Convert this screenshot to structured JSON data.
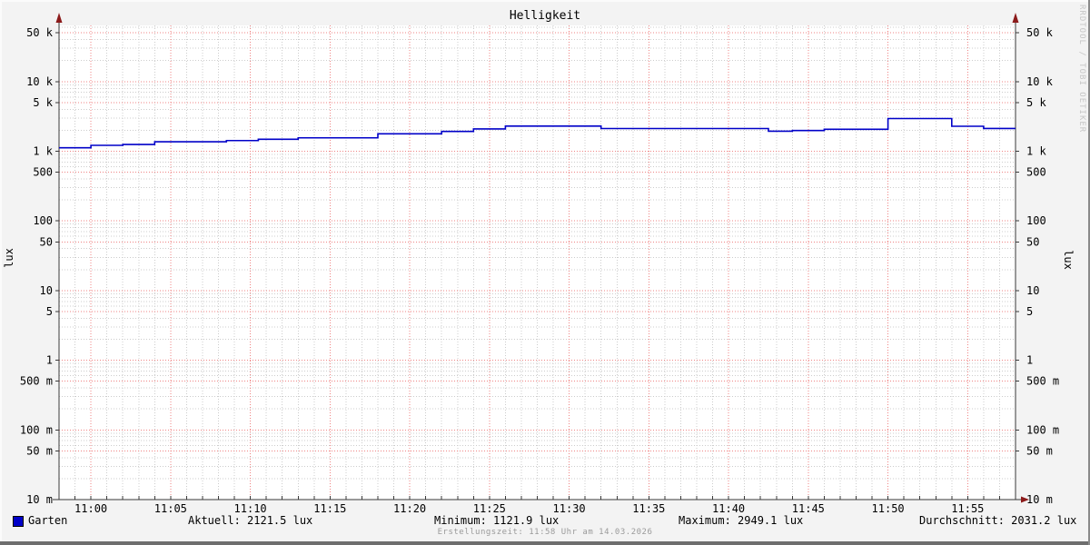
{
  "title": "Helligkeit",
  "watermark": "RRDTOOL / TOBI OETIKER",
  "footer_text": "Erstellungszeit: 11:58 Uhr am 14.03.2026",
  "colors": {
    "background": "#f3f3f3",
    "plot_background": "#ffffff",
    "major_grid": "#ef8383",
    "minor_grid": "#cccccc",
    "axis": "#3a3a3a",
    "arrow": "#8b1a1a",
    "line": "#0000C8",
    "legend_swatch": "#0000C8"
  },
  "stats_row": [
    {
      "id": "aktuell",
      "text": "Aktuell: 2121.5 lux"
    },
    {
      "id": "minimum",
      "text": "Minimum: 1121.9 lux"
    },
    {
      "id": "maximum",
      "text": "Maximum: 2949.1 lux"
    },
    {
      "id": "durchschnitt",
      "text": "Durchschnitt: 2031.2 lux"
    }
  ],
  "chart_data": {
    "type": "line",
    "style": "step-after",
    "title": "Helligkeit",
    "xlabel": "",
    "ylabel": "lux",
    "y_scale": "log",
    "ylim": [
      0.01,
      64000
    ],
    "x_start_time": "10:58",
    "x_end_time": "11:58",
    "x_span_minutes": 60,
    "grid": true,
    "x_ticks": [
      {
        "m": 2,
        "label": "11:00"
      },
      {
        "m": 7,
        "label": "11:05"
      },
      {
        "m": 12,
        "label": "11:10"
      },
      {
        "m": 17,
        "label": "11:15"
      },
      {
        "m": 22,
        "label": "11:20"
      },
      {
        "m": 27,
        "label": "11:25"
      },
      {
        "m": 32,
        "label": "11:30"
      },
      {
        "m": 37,
        "label": "11:35"
      },
      {
        "m": 42,
        "label": "11:40"
      },
      {
        "m": 47,
        "label": "11:45"
      },
      {
        "m": 52,
        "label": "11:50"
      },
      {
        "m": 57,
        "label": "11:55"
      }
    ],
    "y_ticks": [
      {
        "v": 50000,
        "label": "50 k"
      },
      {
        "v": 10000,
        "label": "10 k"
      },
      {
        "v": 5000,
        "label": "5 k"
      },
      {
        "v": 1000,
        "label": "1 k"
      },
      {
        "v": 500,
        "label": "500"
      },
      {
        "v": 100,
        "label": "100"
      },
      {
        "v": 50,
        "label": "50"
      },
      {
        "v": 10,
        "label": "10"
      },
      {
        "v": 5,
        "label": "5"
      },
      {
        "v": 1,
        "label": "1"
      },
      {
        "v": 0.5,
        "label": "500 m"
      },
      {
        "v": 0.1,
        "label": "100 m"
      },
      {
        "v": 0.05,
        "label": "50 m"
      },
      {
        "v": 0.01,
        "label": "10 m"
      }
    ],
    "series": [
      {
        "name": "Garten",
        "color": "#0000C8",
        "unit": "lux",
        "points_format": "[minutes_after_10:58, lux]",
        "points": [
          [
            0,
            1122
          ],
          [
            2,
            1216
          ],
          [
            4,
            1253
          ],
          [
            6,
            1370
          ],
          [
            10.5,
            1424
          ],
          [
            12.5,
            1485
          ],
          [
            15,
            1558
          ],
          [
            20,
            1780
          ],
          [
            24,
            1926
          ],
          [
            26,
            2090
          ],
          [
            28,
            2300
          ],
          [
            34,
            2120
          ],
          [
            44.5,
            1938
          ],
          [
            46,
            1985
          ],
          [
            48,
            2070
          ],
          [
            52,
            2949
          ],
          [
            56,
            2285
          ],
          [
            58,
            2122
          ]
        ]
      }
    ],
    "stats": {
      "aktuell": 2121.5,
      "minimum": 1121.9,
      "maximum": 2949.1,
      "durchschnitt": 2031.2,
      "unit": "lux"
    }
  }
}
